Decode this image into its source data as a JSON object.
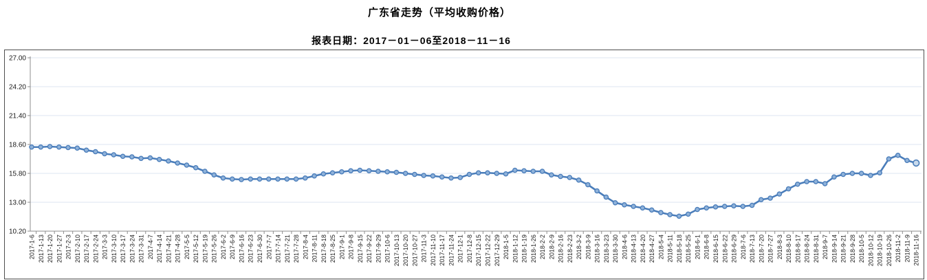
{
  "page": {
    "title": "广东省走势（平均收购价格）",
    "subtitle": "报表日期：2017－01－06至2018－11－16"
  },
  "chart_data": {
    "type": "line",
    "title": "广东省走势（平均收购价格）",
    "subtitle": "报表日期：2017－01－06至2018－11－16",
    "ylim": [
      10.2,
      27.0
    ],
    "yticks": [
      10.2,
      13.0,
      15.8,
      18.6,
      21.4,
      24.2,
      27.0
    ],
    "grid": true,
    "legend": "none",
    "colors": {
      "line": "#4a7dba",
      "marker_fill": "#8fb2da",
      "marker_stroke": "#4a7dba",
      "grid": "#dce6f1",
      "axis": "#8c8c8c",
      "tick_label": "#1a1a1a",
      "border": "#4d4d4d"
    },
    "x_labels": [
      "2017-1-6",
      "2017-1-13",
      "2017-1-20",
      "2017-1-27",
      "2017-2-3",
      "2017-2-10",
      "2017-2-17",
      "2017-2-24",
      "2017-3-3",
      "2017-3-10",
      "2017-3-17",
      "2017-3-24",
      "2017-3-31",
      "2017-4-7",
      "2017-4-14",
      "2017-4-21",
      "2017-4-28",
      "2017-5-5",
      "2017-5-12",
      "2017-5-19",
      "2017-5-26",
      "2017-6-2",
      "2017-6-9",
      "2017-6-16",
      "2017-6-23",
      "2017-6-30",
      "2017-7-7",
      "2017-7-14",
      "2017-7-21",
      "2017-7-28",
      "2017-8-4",
      "2017-8-11",
      "2017-8-18",
      "2017-8-25",
      "2017-9-1",
      "2017-9-8",
      "2017-9-15",
      "2017-9-22",
      "2017-9-29",
      "2017-10-6",
      "2017-10-13",
      "2017-10-20",
      "2017-10-27",
      "2017-11-3",
      "2017-11-10",
      "2017-11-17",
      "2017-11-24",
      "2017-12-1",
      "2017-12-8",
      "2017-12-15",
      "2017-12-22",
      "2017-12-29",
      "2018-1-5",
      "2018-1-12",
      "2018-1-19",
      "2018-1-26",
      "2018-2-2",
      "2018-2-9",
      "2018-2-16",
      "2018-2-23",
      "2018-3-2",
      "2018-3-9",
      "2018-3-16",
      "2018-3-23",
      "2018-3-30",
      "2018-4-6",
      "2018-4-13",
      "2018-4-20",
      "2018-4-27",
      "2018-5-4",
      "2018-5-11",
      "2018-5-18",
      "2018-5-25",
      "2018-6-1",
      "2018-6-8",
      "2018-6-15",
      "2018-6-22",
      "2018-6-29",
      "2018-7-6",
      "2018-7-13",
      "2018-7-20",
      "2018-7-27",
      "2018-8-3",
      "2018-8-10",
      "2018-8-17",
      "2018-8-24",
      "2018-8-31",
      "2018-9-7",
      "2018-9-14",
      "2018-9-21",
      "2018-9-28",
      "2018-10-5",
      "2018-10-12",
      "2018-10-19",
      "2018-10-26",
      "2018-11-2",
      "2018-11-9",
      "2018-11-16"
    ],
    "values": [
      18.35,
      18.35,
      18.4,
      18.35,
      18.3,
      18.25,
      18.05,
      17.9,
      17.7,
      17.6,
      17.45,
      17.4,
      17.25,
      17.3,
      17.15,
      17.0,
      16.8,
      16.6,
      16.35,
      16.0,
      15.65,
      15.35,
      15.25,
      15.2,
      15.25,
      15.25,
      15.25,
      15.25,
      15.25,
      15.25,
      15.35,
      15.55,
      15.75,
      15.85,
      15.95,
      16.05,
      16.1,
      16.05,
      16.0,
      15.95,
      15.9,
      15.8,
      15.7,
      15.6,
      15.55,
      15.45,
      15.35,
      15.4,
      15.7,
      15.85,
      15.85,
      15.8,
      15.75,
      16.1,
      16.05,
      16.0,
      16.0,
      15.65,
      15.5,
      15.4,
      15.15,
      14.7,
      14.1,
      13.5,
      12.95,
      12.75,
      12.6,
      12.45,
      12.25,
      12.0,
      11.8,
      11.65,
      11.85,
      12.3,
      12.45,
      12.55,
      12.6,
      12.65,
      12.6,
      12.7,
      13.25,
      13.4,
      13.8,
      14.3,
      14.75,
      15.0,
      15.0,
      14.8,
      15.45,
      15.7,
      15.8,
      15.8,
      15.6,
      15.85,
      17.2,
      17.55,
      17.05,
      16.8
    ]
  }
}
